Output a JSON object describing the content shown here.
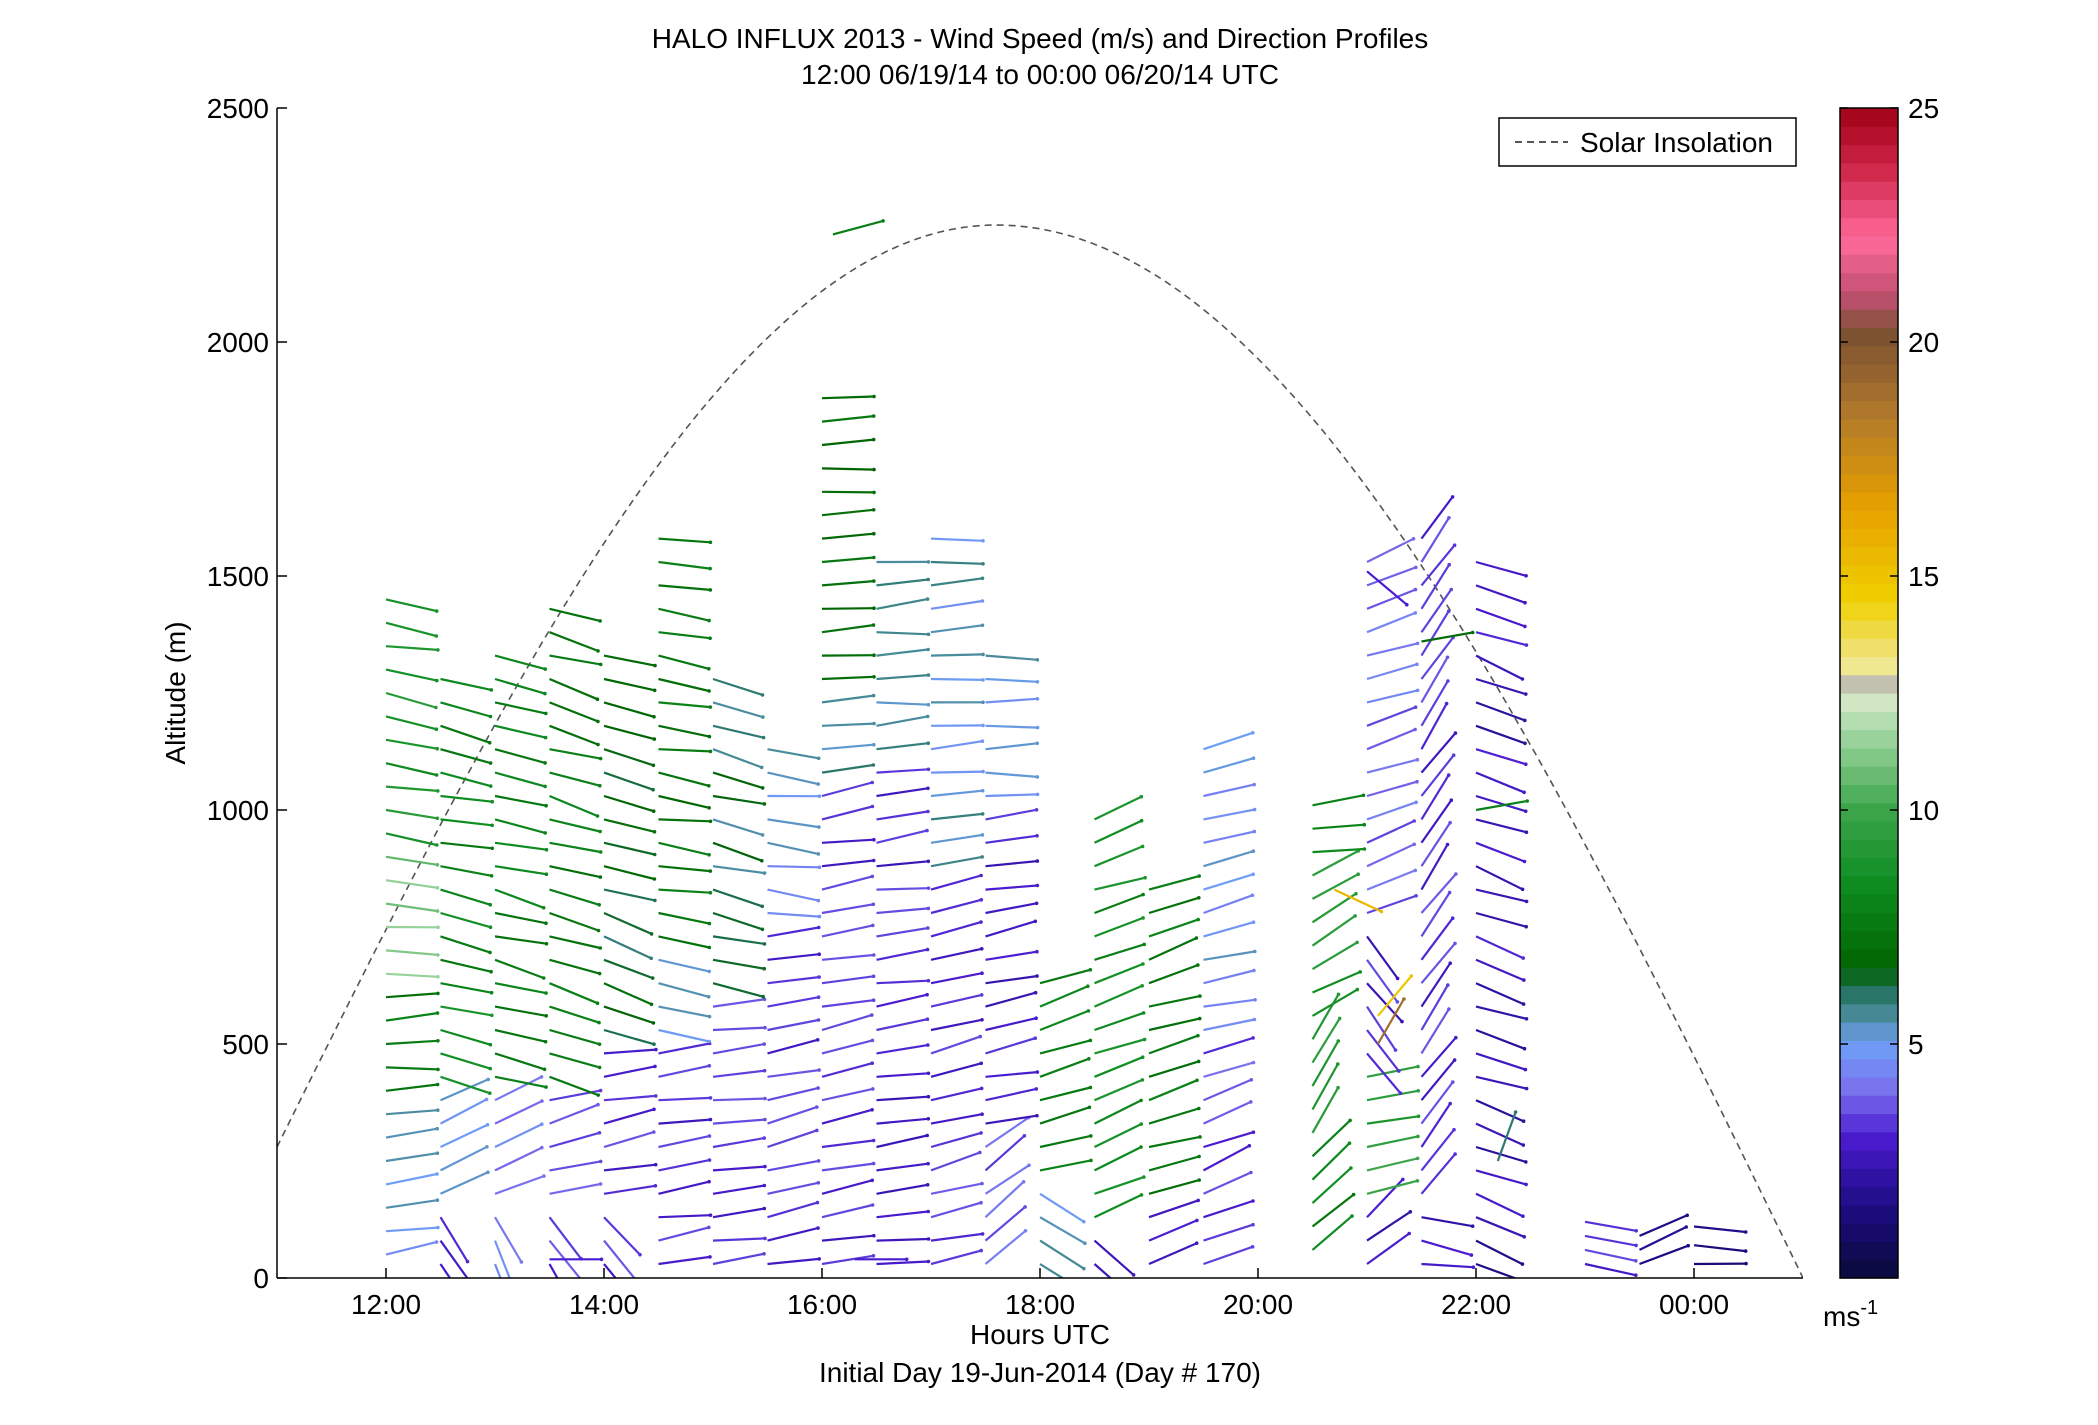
{
  "chart_data": {
    "type": "wind-barb-profile",
    "title_line1": "HALO INFLUX 2013 - Wind Speed (m/s) and Direction Profiles",
    "title_line2": "12:00 06/19/14 to 00:00 06/20/14  UTC",
    "xlabel": "Hours UTC",
    "xlabel2": "Initial Day 19-Jun-2014 (Day # 170)",
    "ylabel": "Altitude (m)",
    "xlim": [
      11.0,
      25.0
    ],
    "ylim": [
      0,
      2500
    ],
    "x_ticks": [
      {
        "value": 12,
        "label": "12:00"
      },
      {
        "value": 14,
        "label": "14:00"
      },
      {
        "value": 16,
        "label": "16:00"
      },
      {
        "value": 18,
        "label": "18:00"
      },
      {
        "value": 20,
        "label": "20:00"
      },
      {
        "value": 22,
        "label": "22:00"
      },
      {
        "value": 24,
        "label": "00:00"
      }
    ],
    "y_ticks": [
      {
        "value": 0,
        "label": "0"
      },
      {
        "value": 500,
        "label": "500"
      },
      {
        "value": 1000,
        "label": "1000"
      },
      {
        "value": 1500,
        "label": "1500"
      },
      {
        "value": 2000,
        "label": "2000"
      },
      {
        "value": 2500,
        "label": "2500"
      }
    ],
    "legend": {
      "label": "Solar Insolation",
      "placement": "top-right",
      "line_color": "#555555",
      "line_style": "dashed"
    },
    "solar_insolation": {
      "shape": "arch",
      "start": {
        "x": 11.0,
        "y": 280
      },
      "peak": {
        "x": 17.6,
        "y": 2250
      },
      "end": {
        "x": 25.0,
        "y": 0
      }
    },
    "colorbar": {
      "min": 0,
      "max": 25,
      "ticks": [
        {
          "value": 5,
          "label": "5"
        },
        {
          "value": 10,
          "label": "10"
        },
        {
          "value": 15,
          "label": "15"
        },
        {
          "value": 20,
          "label": "20"
        },
        {
          "value": 25,
          "label": "25"
        }
      ],
      "unit_label": "ms",
      "unit_exponent": "-1",
      "stops": [
        {
          "value": 0,
          "color": "#0a0a3a"
        },
        {
          "value": 1.5,
          "color": "#1c0c80"
        },
        {
          "value": 3,
          "color": "#4a1bd0"
        },
        {
          "value": 4,
          "color": "#7a70ee"
        },
        {
          "value": 5,
          "color": "#6f9ef6"
        },
        {
          "value": 5.6,
          "color": "#4a8c9c"
        },
        {
          "value": 6.2,
          "color": "#1f6f58"
        },
        {
          "value": 6.6,
          "color": "#006400"
        },
        {
          "value": 8.5,
          "color": "#0f8e22"
        },
        {
          "value": 10,
          "color": "#3ca54a"
        },
        {
          "value": 11.8,
          "color": "#aadbaa"
        },
        {
          "value": 12.4,
          "color": "#d8e8c8"
        },
        {
          "value": 12.6,
          "color": "#b4b4b4"
        },
        {
          "value": 13.0,
          "color": "#f0e89a"
        },
        {
          "value": 14.5,
          "color": "#f0d000"
        },
        {
          "value": 16.5,
          "color": "#e6a000"
        },
        {
          "value": 18.5,
          "color": "#b0782c"
        },
        {
          "value": 20.2,
          "color": "#7a5030"
        },
        {
          "value": 21.0,
          "color": "#c05070"
        },
        {
          "value": 22.2,
          "color": "#ff6a9a"
        },
        {
          "value": 23.8,
          "color": "#cc2244"
        },
        {
          "value": 25,
          "color": "#a00018"
        }
      ]
    },
    "profiles": [
      {
        "time": 12.0,
        "alt_range": [
          50,
          1480
        ],
        "spacing": 50,
        "segments": [
          {
            "to": 380,
            "speed": 5.2,
            "angle": 8
          },
          {
            "to": 600,
            "speed": 7.5,
            "angle": 4
          },
          {
            "to": 900,
            "speed": 11.0,
            "angle": -6
          },
          {
            "to": 1480,
            "speed": 8.8,
            "angle": -10
          }
        ]
      },
      {
        "time": 12.5,
        "alt_range": [
          30,
          1310
        ],
        "spacing": 50,
        "segments": [
          {
            "to": 160,
            "speed": 3.0,
            "angle": -55
          },
          {
            "to": 420,
            "speed": 4.8,
            "angle": 25
          },
          {
            "to": 650,
            "speed": 8.5,
            "angle": -15
          },
          {
            "to": 1310,
            "speed": 8.0,
            "angle": -12
          }
        ]
      },
      {
        "time": 13.0,
        "alt_range": [
          30,
          1340
        ],
        "spacing": 50,
        "segments": [
          {
            "to": 160,
            "speed": 4.3,
            "angle": -65
          },
          {
            "to": 400,
            "speed": 4.5,
            "angle": 20
          },
          {
            "to": 1340,
            "speed": 7.8,
            "angle": -14
          }
        ]
      },
      {
        "time": 13.5,
        "alt_range": [
          30,
          1470
        ],
        "spacing": 50,
        "segments": [
          {
            "to": 170,
            "speed": 3.2,
            "angle": -58
          },
          {
            "to": 420,
            "speed": 3.4,
            "angle": 15
          },
          {
            "to": 1470,
            "speed": 7.6,
            "angle": -16
          }
        ]
      },
      {
        "time": 14.0,
        "alt_range": [
          30,
          1340
        ],
        "spacing": 50,
        "segments": [
          {
            "to": 160,
            "speed": 3.1,
            "angle": -50
          },
          {
            "to": 480,
            "speed": 3.3,
            "angle": 10
          },
          {
            "to": 1340,
            "speed": 6.5,
            "angle": -18
          }
        ]
      },
      {
        "time": 14.5,
        "alt_range": [
          30,
          1610
        ],
        "spacing": 50,
        "segments": [
          {
            "to": 480,
            "speed": 3.0,
            "angle": 8
          },
          {
            "to": 700,
            "speed": 5.0,
            "angle": -12
          },
          {
            "to": 1610,
            "speed": 7.4,
            "angle": -8
          }
        ]
      },
      {
        "time": 15.0,
        "alt_range": [
          30,
          1310
        ],
        "spacing": 50,
        "segments": [
          {
            "to": 600,
            "speed": 3.2,
            "angle": 8
          },
          {
            "to": 1310,
            "speed": 6.0,
            "angle": -14
          }
        ]
      },
      {
        "time": 15.5,
        "alt_range": [
          30,
          1130
        ],
        "spacing": 50,
        "segments": [
          {
            "to": 760,
            "speed": 3.3,
            "angle": 12
          },
          {
            "to": 1130,
            "speed": 5.0,
            "angle": -6
          }
        ]
      },
      {
        "time": 16.0,
        "alt_range": [
          30,
          1920
        ],
        "spacing": 50,
        "segments": [
          {
            "to": 1030,
            "speed": 3.2,
            "angle": 10
          },
          {
            "to": 1250,
            "speed": 5.6,
            "angle": 4
          },
          {
            "to": 1920,
            "speed": 7.0,
            "angle": 4
          }
        ]
      },
      {
        "time": 16.5,
        "alt_range": [
          30,
          1540
        ],
        "spacing": 50,
        "segments": [
          {
            "to": 1100,
            "speed": 3.0,
            "angle": 8
          },
          {
            "to": 1540,
            "speed": 5.5,
            "angle": 4
          }
        ]
      },
      {
        "time": 17.0,
        "alt_range": [
          30,
          1620
        ],
        "spacing": 50,
        "segments": [
          {
            "to": 850,
            "speed": 3.2,
            "angle": 14
          },
          {
            "to": 1620,
            "speed": 5.3,
            "angle": 4
          }
        ]
      },
      {
        "time": 17.5,
        "alt_range": [
          30,
          1370
        ],
        "spacing": 50,
        "segments": [
          {
            "to": 300,
            "speed": 3.8,
            "angle": 40
          },
          {
            "to": 1000,
            "speed": 2.8,
            "angle": 10
          },
          {
            "to": 1370,
            "speed": 5.2,
            "angle": 2
          }
        ]
      },
      {
        "time": 18.0,
        "alt_range": [
          30,
          640
        ],
        "spacing": 50,
        "segments": [
          {
            "to": 200,
            "speed": 5.2,
            "angle": -35
          },
          {
            "to": 640,
            "speed": 8.0,
            "angle": 18
          }
        ]
      },
      {
        "time": 18.5,
        "alt_range": [
          30,
          1010
        ],
        "spacing": 50,
        "segments": [
          {
            "to": 120,
            "speed": 2.5,
            "angle": -40
          },
          {
            "to": 1010,
            "speed": 8.4,
            "angle": 20
          }
        ]
      },
      {
        "time": 19.0,
        "alt_range": [
          30,
          860
        ],
        "spacing": 50,
        "segments": [
          {
            "to": 160,
            "speed": 3.2,
            "angle": 20
          },
          {
            "to": 860,
            "speed": 7.6,
            "angle": 18
          }
        ]
      },
      {
        "time": 19.5,
        "alt_range": [
          30,
          1130
        ],
        "spacing": 50,
        "segments": [
          {
            "to": 500,
            "speed": 3.5,
            "angle": 22
          },
          {
            "to": 1130,
            "speed": 4.8,
            "angle": 14
          }
        ]
      },
      {
        "time": 20.5,
        "alt_range": [
          60,
          1020
        ],
        "spacing": 50,
        "segments": [
          {
            "to": 300,
            "speed": 8.0,
            "angle": 40
          },
          {
            "to": 520,
            "speed": 9.5,
            "angle": 60
          },
          {
            "to": 900,
            "speed": 9.0,
            "angle": 30
          },
          {
            "to": 1020,
            "speed": 8.5,
            "angle": 10
          }
        ]
      },
      {
        "time": 21.0,
        "alt_range": [
          30,
          1540
        ],
        "spacing": 50,
        "segments": [
          {
            "to": 160,
            "speed": 2.8,
            "angle": 40
          },
          {
            "to": 460,
            "speed": 9.5,
            "angle": 10
          },
          {
            "to": 760,
            "speed": 3.0,
            "angle": -50
          },
          {
            "to": 1540,
            "speed": 4.0,
            "angle": 20
          }
        ]
      },
      {
        "time": 21.5,
        "alt_range": [
          30,
          1620
        ],
        "spacing": 50,
        "segments": [
          {
            "to": 160,
            "speed": 2.5,
            "angle": -10
          },
          {
            "to": 1620,
            "speed": 3.2,
            "angle": 55
          }
        ]
      },
      {
        "time": 22.0,
        "alt_range": [
          30,
          1570
        ],
        "spacing": 50,
        "segments": [
          {
            "to": 160,
            "speed": 2.0,
            "angle": -25
          },
          {
            "to": 1570,
            "speed": 2.6,
            "angle": -20
          }
        ]
      },
      {
        "time": 23.0,
        "alt_range": [
          30,
          130
        ],
        "spacing": 30,
        "segments": [
          {
            "to": 130,
            "speed": 3.0,
            "angle": -15
          }
        ]
      },
      {
        "time": 23.5,
        "alt_range": [
          30,
          110
        ],
        "spacing": 30,
        "segments": [
          {
            "to": 110,
            "speed": 2.0,
            "angle": 20
          }
        ]
      },
      {
        "time": 24.0,
        "alt_range": [
          30,
          110
        ],
        "spacing": 40,
        "segments": [
          {
            "to": 110,
            "speed": 1.5,
            "angle": 0
          }
        ]
      }
    ],
    "extra_segments": [
      {
        "x": 16.1,
        "y": 2230,
        "speed": 7.8,
        "angle": 15
      },
      {
        "x": 21.0,
        "y": 1510,
        "speed": 3.0,
        "angle": -40
      },
      {
        "x": 21.5,
        "y": 1360,
        "speed": 7.0,
        "angle": 10
      },
      {
        "x": 22.0,
        "y": 1000,
        "speed": 8.0,
        "angle": 10
      },
      {
        "x": 20.7,
        "y": 830,
        "speed": 15.5,
        "angle": -25
      },
      {
        "x": 21.1,
        "y": 560,
        "speed": 15.0,
        "angle": 50
      },
      {
        "x": 21.1,
        "y": 500,
        "speed": 19.0,
        "angle": 60
      },
      {
        "x": 22.2,
        "y": 250,
        "speed": 6.0,
        "angle": 70
      },
      {
        "x": 16.3,
        "y": 40,
        "speed": 3.0,
        "angle": 0
      },
      {
        "x": 13.5,
        "y": 40,
        "speed": 3.0,
        "angle": 0
      }
    ]
  }
}
